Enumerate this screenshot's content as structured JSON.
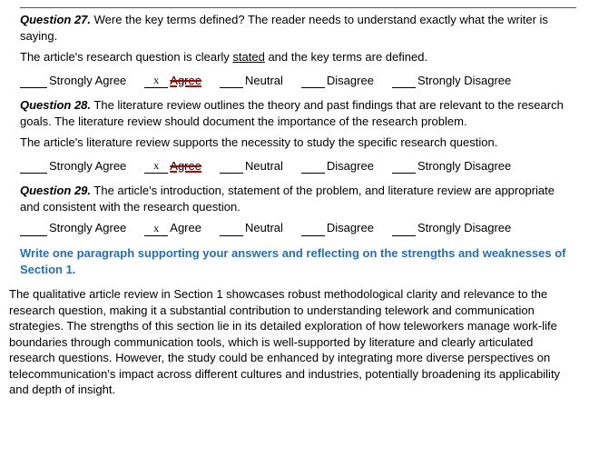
{
  "questions": [
    {
      "lead": "Question 27.",
      "prompt": " Were the key terms defined? The reader needs to understand exactly what the writer is saying.",
      "statement": "The article's research question is clearly stated and the key terms are defined.",
      "statement_has_underline_word": "stated",
      "selected_index": 1,
      "selected_style": "strike"
    },
    {
      "lead": "Question 28.",
      "prompt": " The literature review outlines the theory and past findings that are relevant to the research goals. The literature review should document the importance of the research problem.",
      "statement": "The article's literature review supports the necessity to study the specific research question.",
      "selected_index": 1,
      "selected_style": "strike"
    },
    {
      "lead": "Question 29.",
      "prompt": " The article's introduction, statement of the problem, and literature review are appropriate and consistent with the research question.",
      "statement": "",
      "selected_index": 1,
      "selected_style": "plain"
    }
  ],
  "scale_options": [
    "Strongly Agree",
    "Agree",
    "Neutral",
    "Disagree",
    "Strongly Disagree"
  ],
  "mark_glyph": "x",
  "reflect_heading": "Write one paragraph supporting your answers and reflecting on the strengths and weaknesses of Section 1.",
  "paragraph": "The qualitative article review in Section 1 showcases robust methodological clarity and relevance to the research question, making it a substantial contribution to understanding telework and communication strategies. The strengths of this section lie in its detailed exploration of how teleworkers manage work-life boundaries through communication tools, which is well-supported by literature and clearly articulated research questions. However, the study could be enhanced by integrating more diverse perspectives on telecommunication's impact across different cultures and industries, potentially broadening its applicability and depth of insight."
}
